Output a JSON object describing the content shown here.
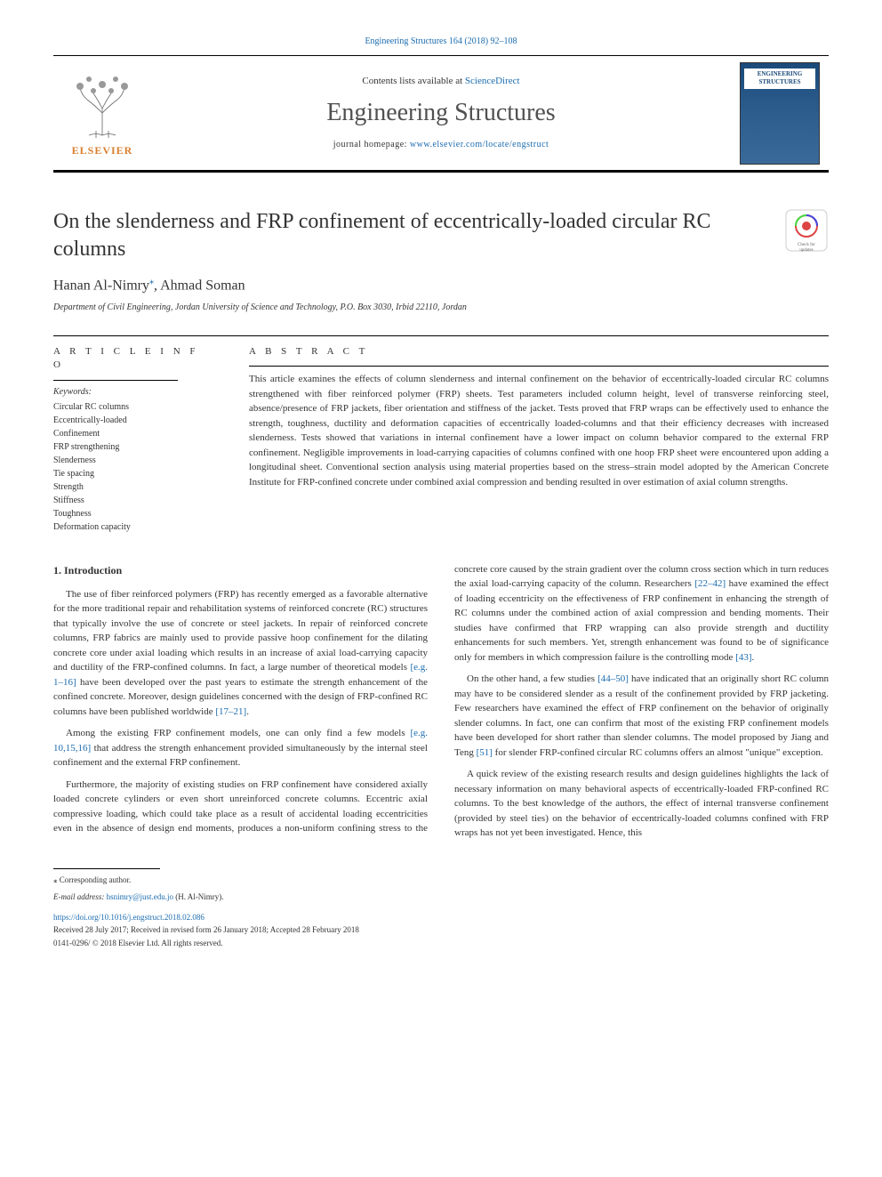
{
  "top_citation": "Engineering Structures 164 (2018) 92–108",
  "header": {
    "contents_prefix": "Contents lists available at ",
    "contents_link": "ScienceDirect",
    "journal_name": "Engineering Structures",
    "homepage_prefix": "journal homepage: ",
    "homepage_link": "www.elsevier.com/locate/engstruct",
    "publisher_logo_text": "ELSEVIER",
    "cover_title": "ENGINEERING STRUCTURES"
  },
  "article": {
    "title": "On the slenderness and FRP confinement of eccentrically-loaded circular RC columns",
    "authors": "Hanan Al-Nimry",
    "corr_mark": "⁎",
    "authors_suffix": ", Ahmad Soman",
    "affiliation": "Department of Civil Engineering, Jordan University of Science and Technology, P.O. Box 3030, Irbid 22110, Jordan",
    "check_updates_label": "Check for updates"
  },
  "info": {
    "label": "A R T I C L E  I N F O",
    "keywords_label": "Keywords:",
    "keywords": [
      "Circular RC columns",
      "Eccentrically-loaded",
      "Confinement",
      "FRP strengthening",
      "Slenderness",
      "Tie spacing",
      "Strength",
      "Stiffness",
      "Toughness",
      "Deformation capacity"
    ]
  },
  "abstract": {
    "label": "A B S T R A C T",
    "text": "This article examines the effects of column slenderness and internal confinement on the behavior of eccentrically-loaded circular RC columns strengthened with fiber reinforced polymer (FRP) sheets. Test parameters included column height, level of transverse reinforcing steel, absence/presence of FRP jackets, fiber orientation and stiffness of the jacket. Tests proved that FRP wraps can be effectively used to enhance the strength, toughness, ductility and deformation capacities of eccentrically loaded-columns and that their efficiency decreases with increased slenderness. Tests showed that variations in internal confinement have a lower impact on column behavior compared to the external FRP confinement. Negligible improvements in load-carrying capacities of columns confined with one hoop FRP sheet were encountered upon adding a longitudinal sheet. Conventional section analysis using material properties based on the stress–strain model adopted by the American Concrete Institute for FRP-confined concrete under combined axial compression and bending resulted in over estimation of axial column strengths."
  },
  "body": {
    "heading": "1. Introduction",
    "p1": "The use of fiber reinforced polymers (FRP) has recently emerged as a favorable alternative for the more traditional repair and rehabilitation systems of reinforced concrete (RC) structures that typically involve the use of concrete or steel jackets. In repair of reinforced concrete columns, FRP fabrics are mainly used to provide passive hoop confinement for the dilating concrete core under axial loading which results in an increase of axial load-carrying capacity and ductility of the FRP-confined columns. In fact, a large number of theoretical models ",
    "p1_ref1": "[e.g. 1–16]",
    "p1_suffix": " have been developed over the past years to estimate the strength enhancement of the confined concrete. Moreover, design guidelines concerned with the design of FRP-confined RC columns have been published worldwide ",
    "p1_ref2": "[17–21]",
    "p1_end": ".",
    "p2_prefix": "Among the existing FRP confinement models, one can only find a few models ",
    "p2_ref": "[e.g. 10,15,16]",
    "p2_suffix": " that address the strength enhancement provided simultaneously by the internal steel confinement and the external FRP confinement.",
    "p3": "Furthermore, the majority of existing studies on FRP confinement have considered axially loaded concrete cylinders or even short unreinforced concrete columns. Eccentric axial compressive loading, which could take place as a result of accidental loading eccentricities even in the absence of design end moments, produces a non-uniform confining stress to the concrete core caused by the strain gradient over the column cross section which in turn reduces the axial load-carrying capacity of the column. Researchers ",
    "p3_ref": "[22–42]",
    "p3_mid": " have examined the effect of loading eccentricity on the effectiveness of FRP confinement in enhancing the strength of RC columns under the combined action of axial compression and bending moments. Their studies have confirmed that FRP wrapping can also provide strength and ductility enhancements for such members. Yet, strength enhancement was found to be of significance only for members in which compression failure is the controlling mode ",
    "p3_ref2": "[43]",
    "p3_end": ".",
    "p4_prefix": "On the other hand, a few studies ",
    "p4_ref": "[44–50]",
    "p4_mid": " have indicated that an originally short RC column may have to be considered slender as a result of the confinement provided by FRP jacketing. Few researchers have examined the effect of FRP confinement on the behavior of originally slender columns. In fact, one can confirm that most of the existing FRP confinement models have been developed for short rather than slender columns. The model proposed by Jiang and Teng ",
    "p4_ref2": "[51]",
    "p4_end": " for slender FRP-confined circular RC columns offers an almost \"unique\" exception.",
    "p5": "A quick review of the existing research results and design guidelines highlights the lack of necessary information on many behavioral aspects of eccentrically-loaded FRP-confined RC columns. To the best knowledge of the authors, the effect of internal transverse confinement (provided by steel ties) on the behavior of eccentrically-loaded columns confined with FRP wraps has not yet been investigated. Hence, this"
  },
  "footer": {
    "corr_note": "⁎ Corresponding author.",
    "email_label": "E-mail address: ",
    "email": "hsnimry@just.edu.jo",
    "email_suffix": " (H. Al-Nimry).",
    "doi": "https://doi.org/10.1016/j.engstruct.2018.02.086",
    "received": "Received 28 July 2017; Received in revised form 26 January 2018; Accepted 28 February 2018",
    "copyright": "0141-0296/ © 2018 Elsevier Ltd. All rights reserved."
  },
  "colors": {
    "link": "#1a6baf",
    "publisher_orange": "#d97e2e",
    "text": "#333333",
    "cover_bg": "#2a5a8a"
  }
}
